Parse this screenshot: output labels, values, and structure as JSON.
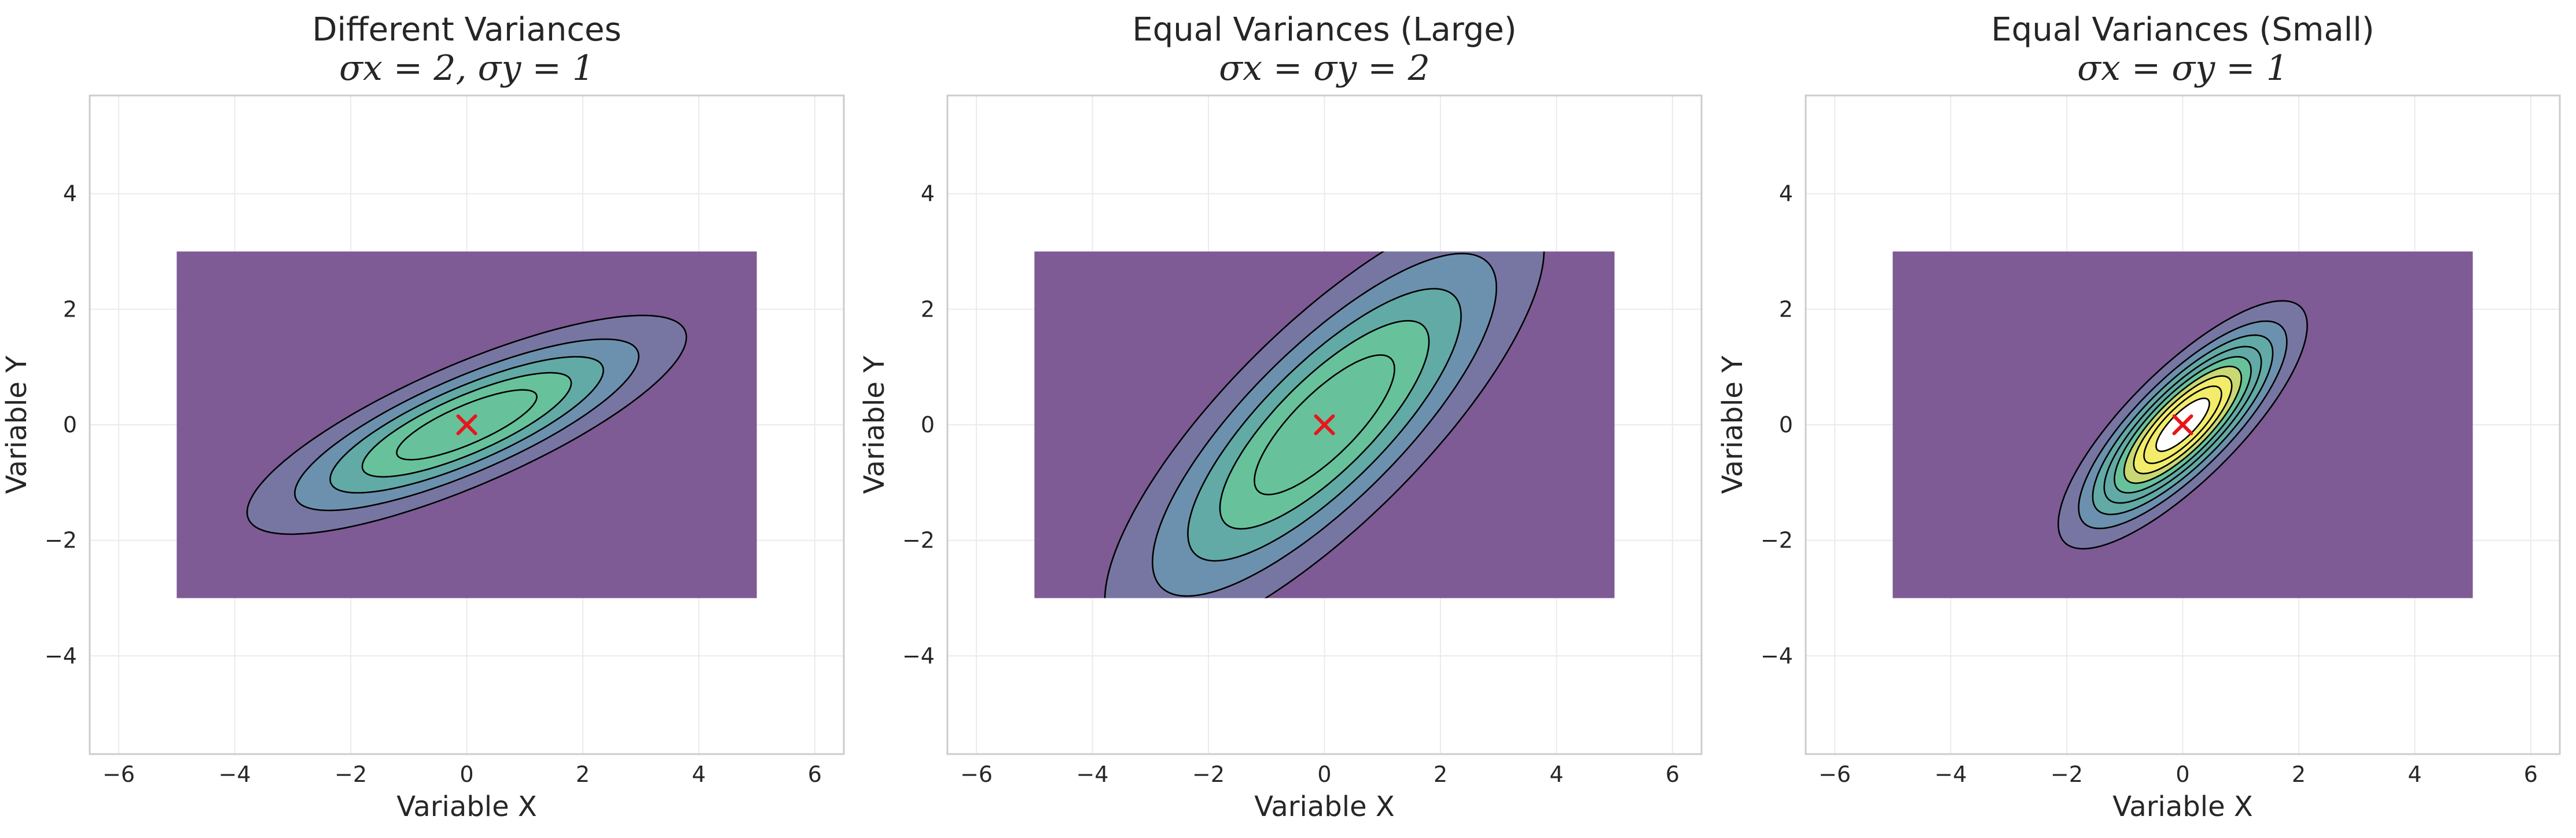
{
  "chart_data": [
    {
      "type": "contour",
      "title": "Different Variances",
      "subtitle": "σx = 2, σy = 1",
      "xlabel": "Variable X",
      "ylabel": "Variable Y",
      "xlim": [
        -6.5,
        6.5
      ],
      "ylim": [
        -5.7,
        5.7
      ],
      "xticks": [
        -6,
        -4,
        -2,
        0,
        2,
        4,
        6
      ],
      "yticks": [
        -4,
        -2,
        0,
        2,
        4
      ],
      "grid": true,
      "domain": {
        "x": [
          -5,
          5
        ],
        "y": [
          -3,
          3
        ]
      },
      "distribution": {
        "mean": [
          0,
          0
        ],
        "sigma_x": 2,
        "sigma_y": 1,
        "rho": 0.8
      },
      "contour_levels": 5,
      "marker": {
        "x": 0,
        "y": 0,
        "symbol": "x",
        "color": "#e8161b"
      }
    },
    {
      "type": "contour",
      "title": "Equal Variances (Large)",
      "subtitle": "σx = σy = 2",
      "xlabel": "Variable X",
      "ylabel": "Variable Y",
      "xlim": [
        -6.5,
        6.5
      ],
      "ylim": [
        -5.7,
        5.7
      ],
      "xticks": [
        -6,
        -4,
        -2,
        0,
        2,
        4,
        6
      ],
      "yticks": [
        -4,
        -2,
        0,
        2,
        4
      ],
      "grid": true,
      "domain": {
        "x": [
          -5,
          5
        ],
        "y": [
          -3,
          3
        ]
      },
      "distribution": {
        "mean": [
          0,
          0
        ],
        "sigma_x": 2,
        "sigma_y": 2,
        "rho": 0.8
      },
      "contour_levels": 5,
      "marker": {
        "x": 0,
        "y": 0,
        "symbol": "x",
        "color": "#e8161b"
      }
    },
    {
      "type": "contour",
      "title": "Equal Variances (Small)",
      "subtitle": "σx = σy = 1",
      "xlabel": "Variable X",
      "ylabel": "Variable Y",
      "xlim": [
        -6.5,
        6.5
      ],
      "ylim": [
        -5.7,
        5.7
      ],
      "xticks": [
        -6,
        -4,
        -2,
        0,
        2,
        4,
        6
      ],
      "yticks": [
        -4,
        -2,
        0,
        2,
        4
      ],
      "grid": true,
      "domain": {
        "x": [
          -5,
          5
        ],
        "y": [
          -3,
          3
        ]
      },
      "distribution": {
        "mean": [
          0,
          0
        ],
        "sigma_x": 1,
        "sigma_y": 1,
        "rho": 0.8
      },
      "contour_levels": 9,
      "marker": {
        "x": 0,
        "y": 0,
        "symbol": "x",
        "color": "#e8161b"
      }
    }
  ],
  "colors": {
    "fill_levels": [
      "#7e5b95",
      "#7776a3",
      "#6c91ae",
      "#62aaa6",
      "#67c29c",
      "#c9d873",
      "#f2ec6a",
      "#ffffff"
    ],
    "contour_line": "#000000",
    "grid": "#ebebeb",
    "frame": "#cccccc"
  }
}
